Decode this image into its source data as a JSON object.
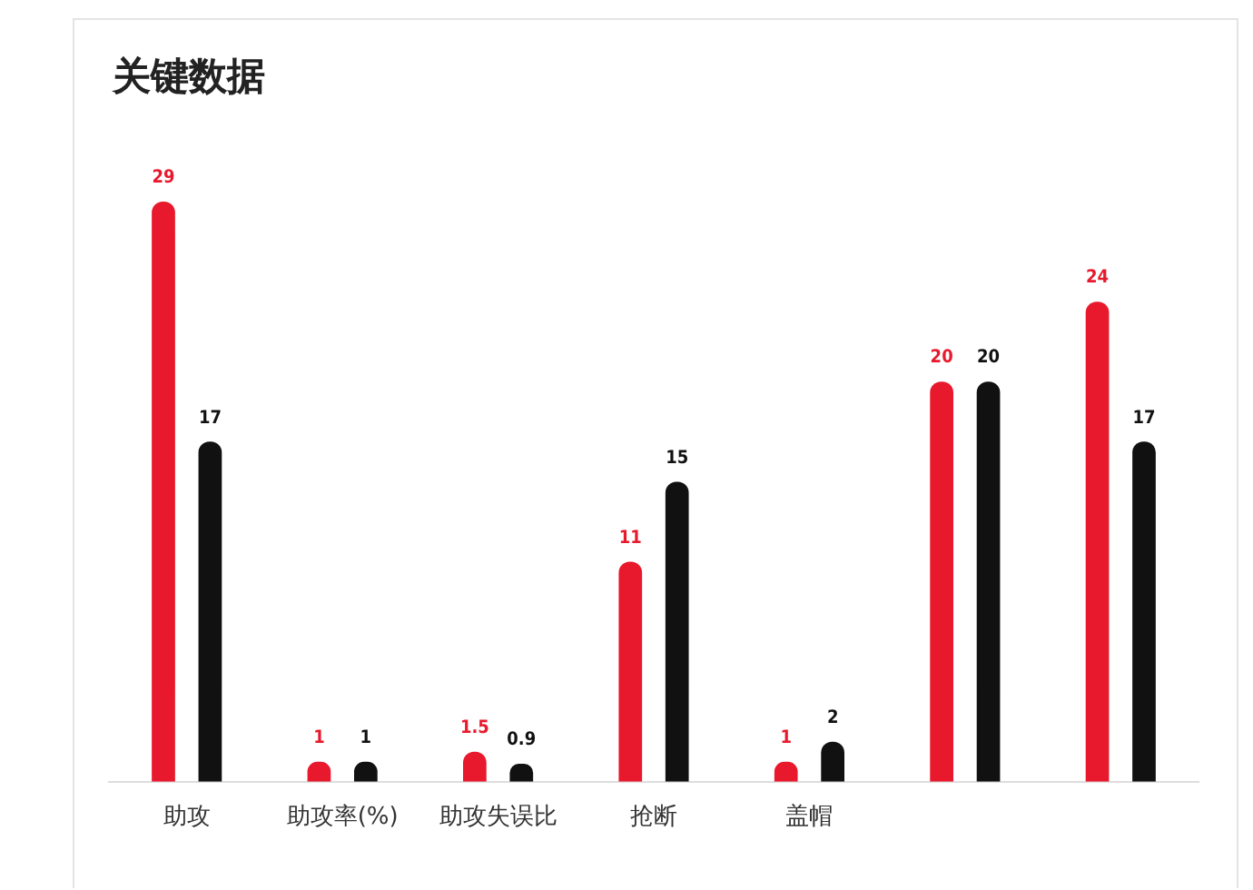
{
  "chart_data": {
    "type": "bar",
    "title": "关键数据",
    "categories": [
      "助攻",
      "助攻率(%)",
      "助攻失误比",
      "抢断",
      "盖帽",
      null,
      null
    ],
    "series": [
      {
        "color": "#e8192c",
        "values": [
          29,
          1,
          1.5,
          11,
          1,
          20,
          24
        ]
      },
      {
        "color": "#111111",
        "values": [
          17,
          1,
          0.9,
          15,
          2,
          20,
          17
        ]
      }
    ],
    "data_labels": true,
    "grid": false,
    "legend": false,
    "tick_labels": "x"
  }
}
